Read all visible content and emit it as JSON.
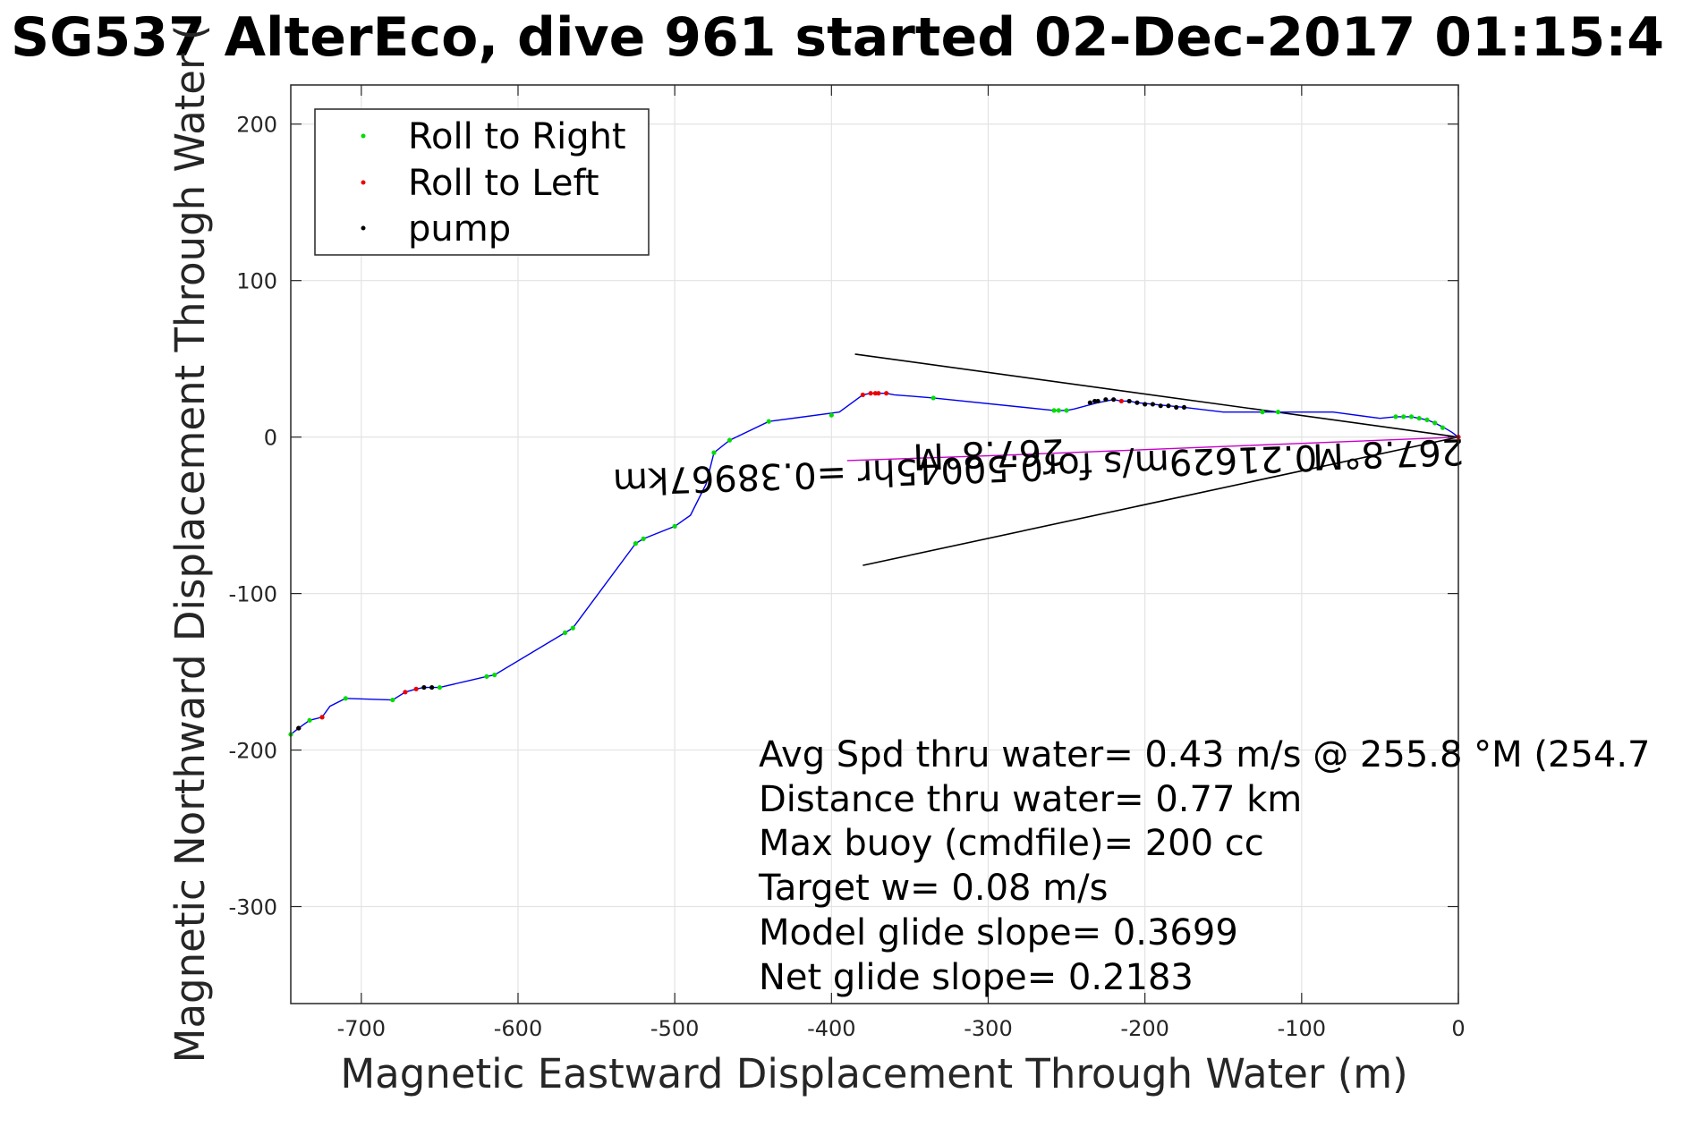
{
  "chart_data": {
    "type": "line",
    "title": "SG537 AlterEco, dive 961 started 02-Dec-2017 01:15:4",
    "xlabel": "Magnetic Eastward Displacement Through Water (m)",
    "ylabel": "Magnetic Northward Displacement Through Water (",
    "xlim": [
      -745,
      0
    ],
    "ylim": [
      -362,
      225
    ],
    "x_ticks": [
      -700,
      -600,
      -500,
      -400,
      -300,
      -200,
      -100,
      0
    ],
    "y_ticks": [
      -300,
      -200,
      -100,
      0,
      100,
      200
    ],
    "x_tick_labels": [
      "-700",
      "-600",
      "-500",
      "-400",
      "-300",
      "-200",
      "-100",
      "0"
    ],
    "y_tick_labels": [
      "-300",
      "-200",
      "-100",
      "0",
      "100",
      "200"
    ],
    "grid": true,
    "legend_position": "top-left",
    "legend": [
      {
        "label": "Roll to Right",
        "color": "#00dd00"
      },
      {
        "label": "Roll to Left",
        "color": "#ee0000"
      },
      {
        "label": "pump",
        "color": "#000000"
      }
    ],
    "series": [
      {
        "name": "track",
        "color": "#0000ee",
        "x": [
          0,
          -4,
          -9,
          -15,
          -20,
          -25,
          -30,
          -35,
          -40,
          -50,
          -80,
          -110,
          -120,
          -150,
          -175,
          -185,
          -195,
          -205,
          -210,
          -215,
          -220,
          -225,
          -230,
          -245,
          -250,
          -258,
          -335,
          -360,
          -365,
          -370,
          -375,
          -380,
          -395,
          -440,
          -465,
          -475,
          -480,
          -490,
          -500,
          -520,
          -525,
          -565,
          -570,
          -615,
          -620,
          -650,
          -660,
          -665,
          -672,
          -680,
          -710,
          -720,
          -725,
          -733,
          -740,
          -745
        ],
        "y": [
          0,
          3,
          6,
          9,
          11,
          12,
          13,
          13,
          13,
          12,
          16,
          16,
          16,
          16,
          19,
          20,
          21,
          22,
          23,
          23,
          24,
          23,
          22,
          18,
          17,
          17,
          25,
          27,
          28,
          28,
          28,
          27,
          16,
          10,
          -2,
          -10,
          -30,
          -50,
          -57,
          -65,
          -68,
          -122,
          -125,
          -152,
          -153,
          -160,
          -160,
          -161,
          -163,
          -168,
          -167,
          -172,
          -179,
          -181,
          -186,
          -190
        ]
      },
      {
        "name": "heading",
        "color": "#cc00cc",
        "x": [
          0,
          -100,
          -200,
          -300,
          -390
        ],
        "y": [
          0,
          -4,
          -8,
          -12,
          -15
        ]
      }
    ],
    "markers": {
      "roll_right": {
        "color": "#00dd00",
        "x": [
          -10,
          -15,
          -20,
          -25,
          -30,
          -35,
          -40,
          -115,
          -125,
          -250,
          -255,
          -258,
          -335,
          -400,
          -440,
          -465,
          -475,
          -500,
          -520,
          -525,
          -565,
          -570,
          -615,
          -620,
          -650,
          -680,
          -710,
          -725,
          -733,
          -745
        ],
        "y": [
          6,
          9,
          11,
          12,
          13,
          13,
          13,
          16,
          16,
          17,
          17,
          17,
          25,
          14,
          10,
          -2,
          -10,
          -57,
          -65,
          -68,
          -122,
          -125,
          -152,
          -153,
          -160,
          -168,
          -167,
          -179,
          -181,
          -190
        ]
      },
      "roll_left": {
        "color": "#ee0000",
        "x": [
          0,
          -215,
          -365,
          -370,
          -372,
          -375,
          -380,
          -665,
          -672,
          -725,
          -740
        ],
        "y": [
          0,
          23,
          28,
          28,
          28,
          28,
          27,
          -161,
          -163,
          -179,
          -186
        ]
      },
      "pump": {
        "color": "#000000",
        "x": [
          -175,
          -180,
          -185,
          -190,
          -195,
          -200,
          -205,
          -210,
          -220,
          -225,
          -230,
          -232,
          -235,
          -660,
          -655,
          -740
        ],
        "y": [
          19,
          19,
          20,
          20,
          21,
          21,
          22,
          23,
          24,
          24,
          23,
          23,
          22,
          -160,
          -160,
          -186
        ]
      }
    },
    "reference_lines": [
      {
        "x": [
          0,
          -385
        ],
        "y": [
          0,
          53
        ],
        "color": "#000000"
      },
      {
        "x": [
          0,
          -380
        ],
        "y": [
          0,
          -82
        ],
        "color": "#000000"
      }
    ],
    "annotations": [
      "Avg Spd thru water=  0.43 m/s @ 255.8 °M (254.7",
      "Distance thru water=  0.77 km",
      "Max buoy (cmdfile)= 200 cc",
      "Target w= 0.08 m/s",
      "Model glide slope= 0.3699",
      "Net glide slope= 0.2183"
    ],
    "rotated_labels": [
      {
        "text": "267.8°M",
        "x": -45,
        "y": -3
      },
      {
        "text": "267.8°M",
        "x": -300,
        "y": -3
      },
      {
        "text": "0.21629m/s for0.50045hr =0.38967km",
        "x": -315,
        "y": -13
      }
    ]
  }
}
